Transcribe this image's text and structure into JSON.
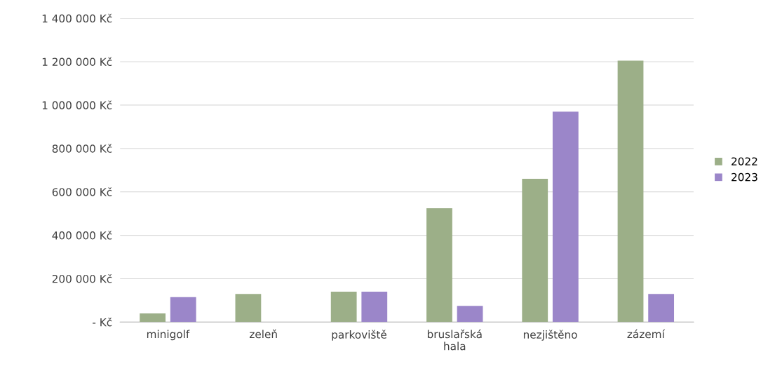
{
  "chart_data": {
    "type": "bar",
    "categories": [
      "minigolf",
      "zeleň",
      "parkoviště",
      "bruslařská\nhala",
      "nezjištěno",
      "zázemí"
    ],
    "series": [
      {
        "name": "2022",
        "color": "#9caf88",
        "values": [
          40000,
          130000,
          140000,
          525000,
          660000,
          1205000
        ]
      },
      {
        "name": "2023",
        "color": "#9b86c9",
        "values": [
          115000,
          null,
          140000,
          75000,
          970000,
          130000
        ]
      }
    ],
    "ylim": [
      0,
      1400000
    ],
    "yticks": [
      {
        "value": 0,
        "label": "- Kč"
      },
      {
        "value": 200000,
        "label": "200 000 Kč"
      },
      {
        "value": 400000,
        "label": "400 000 Kč"
      },
      {
        "value": 600000,
        "label": "600 000 Kč"
      },
      {
        "value": 800000,
        "label": "800 000 Kč"
      },
      {
        "value": 1000000,
        "label": "1 000 000 Kč"
      },
      {
        "value": 1200000,
        "label": "1 200 000 Kč"
      },
      {
        "value": 1400000,
        "label": "1 400 000 Kč"
      }
    ],
    "grid": "y",
    "legend": "right"
  }
}
